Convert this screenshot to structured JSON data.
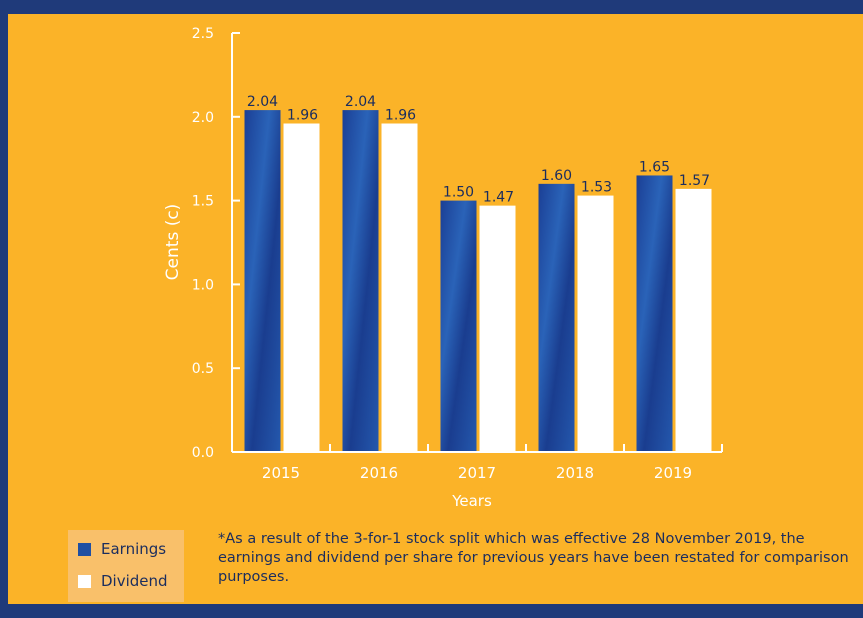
{
  "colors": {
    "background": "#1f3a7a",
    "panel": "#fbb328",
    "earnings": "#1f4fa3",
    "dividend": "#ffffff",
    "text": "#1b2d5e",
    "axis_title": "#ffffff"
  },
  "legend": {
    "earnings_label": "Earnings",
    "dividend_label": "Dividend"
  },
  "footnote": "*As a result of the 3-for-1 stock split which was effective 28 November 2019, the earnings and dividend per share for previous years have been restated for comparison purposes.",
  "chart_data": {
    "type": "bar",
    "title": "",
    "xlabel": "Years",
    "ylabel": "Cents (c)",
    "ylim": [
      0,
      2.5
    ],
    "yticks": [
      "0.0",
      "0.5",
      "1.0",
      "1.5",
      "2.0",
      "2.5"
    ],
    "grid": false,
    "legend_position": "bottom-left",
    "categories": [
      "2015",
      "2016",
      "2017",
      "2018",
      "2019"
    ],
    "series": [
      {
        "name": "Earnings",
        "values": [
          2.04,
          2.04,
          1.5,
          1.6,
          1.65
        ],
        "labels": [
          "2.04",
          "2.04",
          "1.50",
          "1.60",
          "1.65"
        ]
      },
      {
        "name": "Dividend",
        "values": [
          1.96,
          1.96,
          1.47,
          1.53,
          1.57
        ],
        "labels": [
          "1.96",
          "1.96",
          "1.47",
          "1.53",
          "1.57"
        ]
      }
    ]
  }
}
